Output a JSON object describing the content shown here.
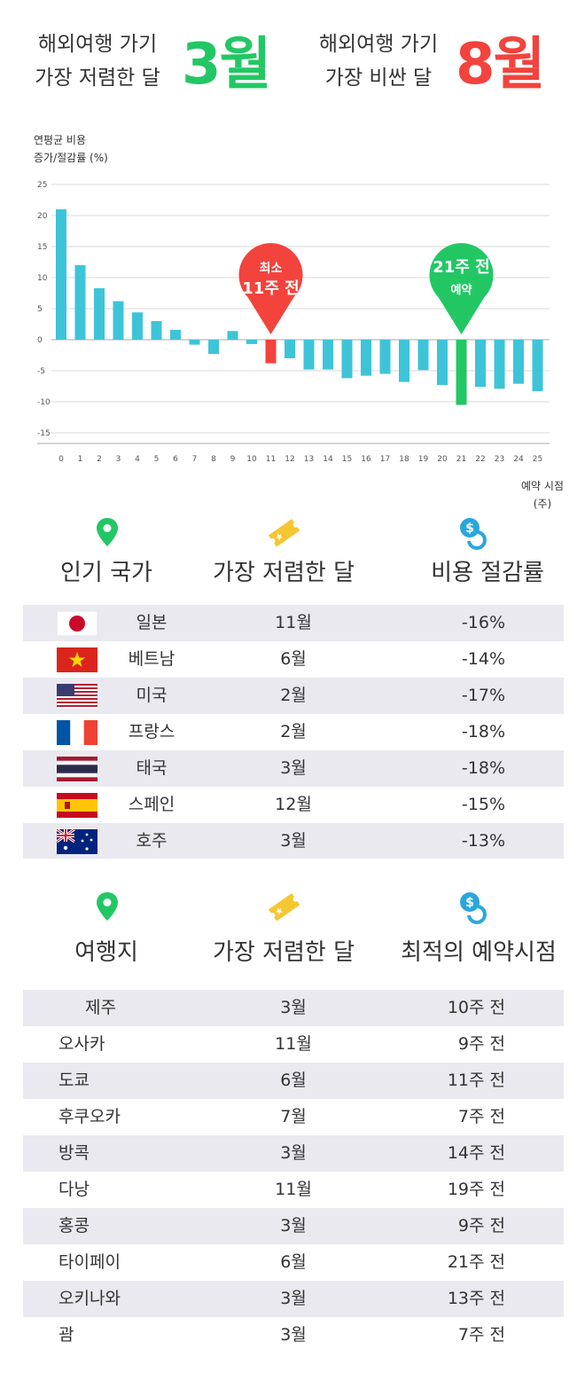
{
  "header": {
    "cheap_label_line1": "해외여행 가기",
    "cheap_label_line2": "가장 저렴한 달",
    "cheap_month": "3월",
    "cheap_color": "#22c764",
    "expensive_label_line1": "해외여행 가기",
    "expensive_label_line2": "가장 비싼 달",
    "expensive_month": "8월",
    "expensive_color": "#f2433d"
  },
  "chart_data": {
    "type": "bar",
    "ylabel_line1": "연평균 비용",
    "ylabel_line2": "증가/절감률 (%)",
    "xlabel_line1": "예약 시점",
    "xlabel_line2": "(주)",
    "ylim": [
      -15,
      25
    ],
    "yticks": [
      25,
      20,
      15,
      10,
      5,
      0,
      -5,
      -10,
      -15
    ],
    "categories": [
      "0",
      "1",
      "2",
      "3",
      "4",
      "5",
      "6",
      "7",
      "8",
      "9",
      "10",
      "11",
      "12",
      "13",
      "14",
      "15",
      "16",
      "17",
      "18",
      "19",
      "20",
      "21",
      "22",
      "23",
      "24",
      "25"
    ],
    "values": [
      21,
      12,
      8.3,
      6.2,
      4.4,
      3,
      1.6,
      -0.8,
      -2.3,
      1.4,
      -0.7,
      -3.8,
      -3,
      -4.8,
      -4.8,
      -6.2,
      -5.8,
      -5.5,
      -6.8,
      -4.9,
      -7.3,
      -10.5,
      -7.6,
      -7.9,
      -7.1,
      -8.3
    ],
    "bar_color": "#3ec4d8",
    "highlights": [
      {
        "category": "11",
        "color": "#f2433d",
        "label_line1": "최소",
        "label_line2": "11주 전"
      },
      {
        "category": "21",
        "color": "#22c764",
        "label_line1": "21주 전",
        "label_line2": "예약"
      }
    ],
    "grid": true
  },
  "icons": {
    "location": "map-pin-icon",
    "ticket": "ticket-icon",
    "savings": "dollar-coin-icon",
    "location_color": "#22c764",
    "ticket_color": "#f6c632",
    "savings_color": "#29a7dd"
  },
  "countries": {
    "headers": [
      "인기 국가",
      "가장 저렴한 달",
      "비용 절감률"
    ],
    "rows": [
      {
        "flag": "japan",
        "name": "일본",
        "month": "11월",
        "rate": "-16%"
      },
      {
        "flag": "vietnam",
        "name": "베트남",
        "month": "6월",
        "rate": "-14%"
      },
      {
        "flag": "usa",
        "name": "미국",
        "month": "2월",
        "rate": "-17%"
      },
      {
        "flag": "france",
        "name": "프랑스",
        "month": "2월",
        "rate": "-18%"
      },
      {
        "flag": "thailand",
        "name": "태국",
        "month": "3월",
        "rate": "-18%"
      },
      {
        "flag": "spain",
        "name": "스페인",
        "month": "12월",
        "rate": "-15%"
      },
      {
        "flag": "australia",
        "name": "호주",
        "month": "3월",
        "rate": "-13%"
      }
    ]
  },
  "destinations": {
    "headers": [
      "여행지",
      "가장 저렴한 달",
      "최적의 예약시점"
    ],
    "rows": [
      {
        "name": "제주",
        "month": "3월",
        "timing": "10주 전"
      },
      {
        "name": "오사카",
        "month": "11월",
        "timing": "9주 전"
      },
      {
        "name": "도쿄",
        "month": "6월",
        "timing": "11주 전"
      },
      {
        "name": "후쿠오카",
        "month": "7월",
        "timing": "7주 전"
      },
      {
        "name": "방콕",
        "month": "3월",
        "timing": "14주 전"
      },
      {
        "name": "다낭",
        "month": "11월",
        "timing": "19주 전"
      },
      {
        "name": "홍콩",
        "month": "3월",
        "timing": "9주 전"
      },
      {
        "name": "타이페이",
        "month": "6월",
        "timing": "21주 전"
      },
      {
        "name": "오키나와",
        "month": "3월",
        "timing": "13주 전"
      },
      {
        "name": "괌",
        "month": "3월",
        "timing": "7주 전"
      }
    ]
  }
}
